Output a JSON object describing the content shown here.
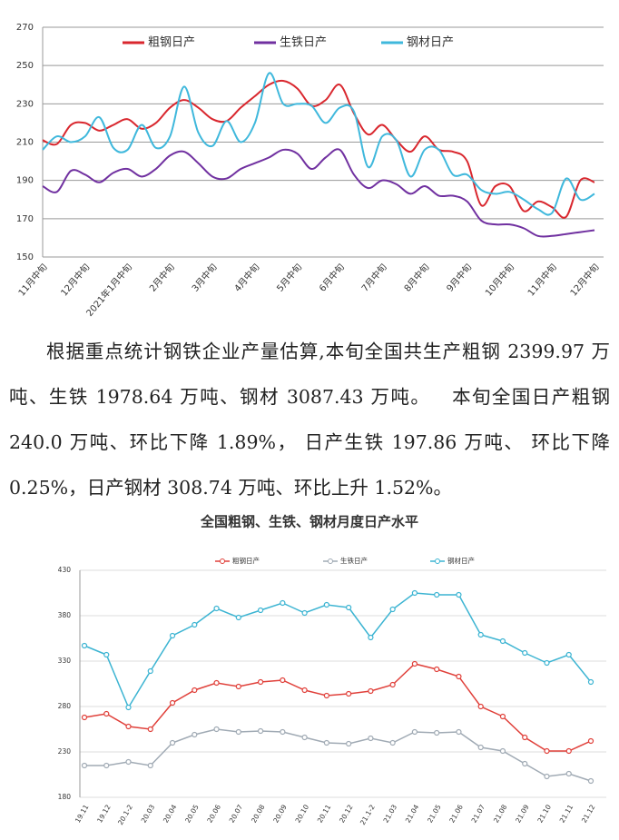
{
  "chart_data": [
    {
      "type": "line",
      "categories": [
        "11月中旬",
        null,
        null,
        "12月中旬",
        null,
        null,
        "2021年1月中旬",
        null,
        null,
        "2月中旬",
        null,
        null,
        "3月中旬",
        null,
        null,
        "4月中旬",
        null,
        null,
        "5月中旬",
        null,
        null,
        "6月中旬",
        null,
        null,
        "7月中旬",
        null,
        null,
        "8月中旬",
        null,
        null,
        "9月中旬",
        null,
        null,
        "10月中旬",
        null,
        null,
        "11月中旬",
        null,
        null,
        "12月中旬"
      ],
      "series": [
        {
          "name": "粗钢日产",
          "color": "#d9272e",
          "values": [
            211,
            209,
            219,
            220,
            216,
            219,
            222,
            217,
            220,
            228,
            232,
            228,
            222,
            221,
            228,
            234,
            240,
            242,
            238,
            229,
            232,
            240,
            225,
            214,
            219,
            211,
            205,
            213,
            206,
            205,
            200,
            177,
            187,
            187,
            174,
            179,
            176,
            171,
            190,
            189
          ]
        },
        {
          "name": "生铁日产",
          "color": "#7030a0",
          "values": [
            187,
            184,
            195,
            193,
            189,
            194,
            196,
            192,
            196,
            203,
            205,
            199,
            192,
            191,
            196,
            199,
            202,
            206,
            204,
            196,
            202,
            206,
            193,
            186,
            190,
            188,
            183,
            187,
            182,
            182,
            179,
            169,
            167,
            167,
            165,
            161,
            161,
            162,
            163,
            164
          ]
        },
        {
          "name": "钢材日产",
          "color": "#3fb8dc",
          "values": [
            206,
            213,
            210,
            213,
            223,
            207,
            206,
            219,
            207,
            213,
            239,
            215,
            208,
            221,
            210,
            220,
            246,
            230,
            230,
            229,
            220,
            228,
            226,
            197,
            213,
            211,
            192,
            206,
            206,
            193,
            193,
            185,
            183,
            184,
            180,
            175,
            173,
            191,
            180,
            183
          ]
        }
      ],
      "ylim": [
        150,
        270
      ],
      "yticks": [
        150,
        170,
        190,
        210,
        230,
        250,
        270
      ],
      "grid": true,
      "smooth": true,
      "markers": false
    },
    {
      "type": "line",
      "title": "全国粗钢、生铁、钢材月度日产水平",
      "categories": [
        "19.11",
        "19.12",
        "20.1-2",
        "20.03",
        "20.04",
        "20.05",
        "20.06",
        "20.07",
        "20.08",
        "20.09",
        "20.10",
        "20.11",
        "20.12",
        "21.1-2",
        "21.03",
        "21.04",
        "21.05",
        "21.06",
        "21.07",
        "21.08",
        "21.09",
        "21.10",
        "21.11",
        "21.12"
      ],
      "series": [
        {
          "name": "粗钢日产",
          "color": "#e0403a",
          "values": [
            268,
            272,
            258,
            255,
            284,
            298,
            306,
            302,
            307,
            309,
            298,
            292,
            294,
            297,
            304,
            327,
            321,
            313,
            280,
            269,
            246,
            231,
            231,
            242
          ]
        },
        {
          "name": "生铁日产",
          "color": "#a0aab4",
          "values": [
            215,
            215,
            219,
            215,
            240,
            249,
            255,
            252,
            253,
            252,
            246,
            240,
            239,
            245,
            240,
            252,
            251,
            252,
            235,
            231,
            217,
            203,
            206,
            198
          ]
        },
        {
          "name": "钢材日产",
          "color": "#3cb4d2",
          "values": [
            347,
            337,
            279,
            319,
            358,
            370,
            388,
            378,
            386,
            394,
            383,
            392,
            389,
            356,
            387,
            405,
            403,
            403,
            359,
            352,
            339,
            328,
            337,
            307
          ]
        }
      ],
      "ylim": [
        180,
        430
      ],
      "yticks": [
        180,
        230,
        280,
        330,
        380,
        430
      ],
      "grid": true,
      "smooth": false,
      "markers": true
    }
  ],
  "paragraph": "根据重点统计钢铁企业产量估算,本旬全国共生产粗钢 2399.97 万吨、生铁 1978.64 万吨、钢材 3087.43 万吨。   本旬全国日产粗钢 240.0 万吨、环比下降 1.89%， 日产生铁 197.86 万吨、 环比下降 0.25%，日产钢材 308.74 万吨、环比上升 1.52%。"
}
